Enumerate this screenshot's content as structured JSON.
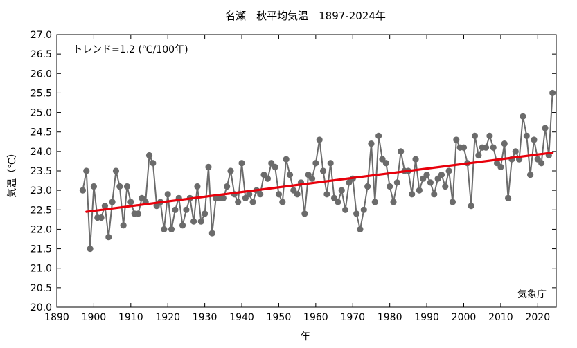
{
  "chart_data": {
    "type": "line",
    "title": "名瀬　秋平均気温　1897-2024年",
    "xlabel": "年",
    "ylabel": "気温（℃）",
    "trend_label": "トレンド=1.2 (℃/100年)",
    "source_label": "気象庁",
    "xlim": [
      1890,
      2025
    ],
    "ylim": [
      20.0,
      27.0
    ],
    "x_ticks": [
      1890,
      1900,
      1910,
      1920,
      1930,
      1940,
      1950,
      1960,
      1970,
      1980,
      1990,
      2000,
      2010,
      2020
    ],
    "x_tick_labels": [
      "1890",
      "1900",
      "1910",
      "1920",
      "1930",
      "1940",
      "1950",
      "1960",
      "1970",
      "1980",
      "1990",
      "2000",
      "2010",
      "2020"
    ],
    "y_ticks": [
      20.0,
      20.5,
      21.0,
      21.5,
      22.0,
      22.5,
      23.0,
      23.5,
      24.0,
      24.5,
      25.0,
      25.5,
      26.0,
      26.5,
      27.0
    ],
    "y_tick_labels": [
      "20.0",
      "20.5",
      "21.0",
      "21.5",
      "22.0",
      "22.5",
      "23.0",
      "23.5",
      "24.0",
      "24.5",
      "25.0",
      "25.5",
      "26.0",
      "26.5",
      "27.0"
    ],
    "grid": false,
    "series": [
      {
        "color": "#6b6b6b",
        "x": [
          1897,
          1898,
          1899,
          1900,
          1901,
          1902,
          1903,
          1904,
          1905,
          1906,
          1907,
          1908,
          1909,
          1910,
          1911,
          1912,
          1913,
          1914,
          1915,
          1916,
          1917,
          1918,
          1919,
          1920,
          1921,
          1922,
          1923,
          1924,
          1925,
          1926,
          1927,
          1928,
          1929,
          1930,
          1931,
          1932,
          1933,
          1934,
          1935,
          1936,
          1937,
          1938,
          1939,
          1940,
          1941,
          1942,
          1943,
          1944,
          1945,
          1946,
          1947,
          1948,
          1949,
          1950,
          1951,
          1952,
          1953,
          1954,
          1955,
          1956,
          1957,
          1958,
          1959,
          1960,
          1961,
          1962,
          1963,
          1964,
          1965,
          1966,
          1967,
          1968,
          1969,
          1970,
          1971,
          1972,
          1973,
          1974,
          1975,
          1976,
          1977,
          1978,
          1979,
          1980,
          1981,
          1982,
          1983,
          1984,
          1985,
          1986,
          1987,
          1988,
          1989,
          1990,
          1991,
          1992,
          1993,
          1994,
          1995,
          1996,
          1997,
          1998,
          1999,
          2000,
          2001,
          2002,
          2003,
          2004,
          2005,
          2006,
          2007,
          2008,
          2009,
          2010,
          2011,
          2012,
          2013,
          2014,
          2015,
          2016,
          2017,
          2018,
          2019,
          2020,
          2021,
          2022,
          2023,
          2024
        ],
        "values": [
          23.0,
          23.5,
          21.5,
          23.1,
          22.3,
          22.3,
          22.6,
          21.8,
          22.7,
          23.5,
          23.1,
          22.1,
          23.1,
          22.7,
          22.4,
          22.4,
          22.8,
          22.7,
          23.9,
          23.7,
          22.6,
          22.7,
          22.0,
          22.9,
          22.0,
          22.5,
          22.8,
          22.1,
          22.5,
          22.8,
          22.2,
          23.1,
          22.2,
          22.4,
          23.6,
          21.9,
          22.8,
          22.8,
          22.8,
          23.1,
          23.5,
          22.9,
          22.7,
          23.7,
          22.8,
          22.9,
          22.7,
          23.0,
          22.9,
          23.4,
          23.3,
          23.7,
          23.6,
          22.9,
          22.7,
          23.8,
          23.4,
          23.0,
          22.9,
          23.2,
          22.4,
          23.4,
          23.3,
          23.7,
          24.3,
          23.5,
          22.9,
          23.7,
          22.8,
          22.7,
          23.0,
          22.5,
          23.2,
          23.3,
          22.4,
          22.0,
          22.5,
          23.1,
          24.2,
          22.7,
          24.4,
          23.8,
          23.7,
          23.1,
          22.7,
          23.2,
          24.0,
          23.5,
          23.5,
          22.9,
          23.8,
          23.0,
          23.3,
          23.4,
          23.2,
          22.9,
          23.3,
          23.4,
          23.1,
          23.5,
          22.7,
          24.3,
          24.1,
          24.1,
          23.7,
          22.6,
          24.4,
          23.9,
          24.1,
          24.1,
          24.4,
          24.1,
          23.7,
          23.6,
          24.2,
          22.8,
          23.8,
          24.0,
          23.8,
          24.9,
          24.4,
          23.4,
          24.3,
          23.8,
          23.7,
          24.6,
          23.9,
          25.5
        ]
      }
    ],
    "trend": {
      "color": "#e8000b",
      "x": [
        1898,
        2024
      ],
      "values": [
        22.45,
        23.97
      ]
    }
  }
}
